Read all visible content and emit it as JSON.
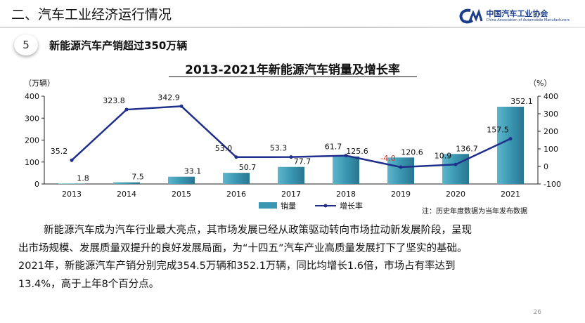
{
  "header": {
    "section_title": "二、汽车工业经济运行情况",
    "logo_cn": "中国汽车工业协会",
    "logo_en": "China Association of Automobile Manufacturers"
  },
  "slide": {
    "badge_number": "5",
    "subtitle": "新能源汽车产销超过350万辆",
    "paragraph_line1": "新能源汽车成为汽车行业最大亮点，其市场发展已经从政策驱动转向市场拉动新发展阶段，呈现",
    "paragraph_line2": "出市场规模、发展质量双提升的良好发展局面，为“十四五”汽车产业高质量发展打下了坚实的基础。",
    "paragraph_line3": "2021年，新能源汽车产销分别完成354.5万辆和352.1万辆，同比均增长1.6倍，市场占有率达到",
    "paragraph_line4": "13.4%，高于上年8个百分点。",
    "page_number": "26"
  },
  "chart_data": {
    "type": "bar",
    "title": "2013-2021年新能源汽车销量及增长率",
    "ylabel": "（万辆）",
    "y2label": "（%）",
    "categories": [
      "2013",
      "2014",
      "2015",
      "2016",
      "2017",
      "2018",
      "2019",
      "2020",
      "2021"
    ],
    "ylim": [
      0,
      400
    ],
    "yticks": [
      "0",
      "100",
      "200",
      "300",
      "400"
    ],
    "y2lim": [
      -100,
      400
    ],
    "y2ticks": [
      "-100",
      "0",
      "100",
      "200",
      "300",
      "400"
    ],
    "series": [
      {
        "name": "销量",
        "kind": "bar",
        "color": "#3a97b1",
        "values": [
          1.8,
          7.5,
          33.1,
          50.7,
          77.7,
          125.6,
          120.6,
          136.7,
          352.1
        ],
        "labels": [
          "1.8",
          "7.5",
          "33.1",
          "50.7",
          "77.7",
          "125.6",
          "120.6",
          "136.7",
          "352.1"
        ]
      },
      {
        "name": "增长率",
        "kind": "line",
        "axis": "right",
        "color": "#1f2f8c",
        "values": [
          35.2,
          323.8,
          342.9,
          53.0,
          53.3,
          61.7,
          -4.0,
          10.9,
          157.5
        ],
        "labels": [
          "35.2",
          "323.8",
          "342.9",
          "53.0",
          "53.3",
          "61.7",
          "-4.0",
          "10.9",
          "157.5"
        ],
        "negative_label_color": "#e0302a"
      }
    ],
    "legend_position": "bottom-center",
    "note": "注：历史年度数据为当年发布数据"
  }
}
